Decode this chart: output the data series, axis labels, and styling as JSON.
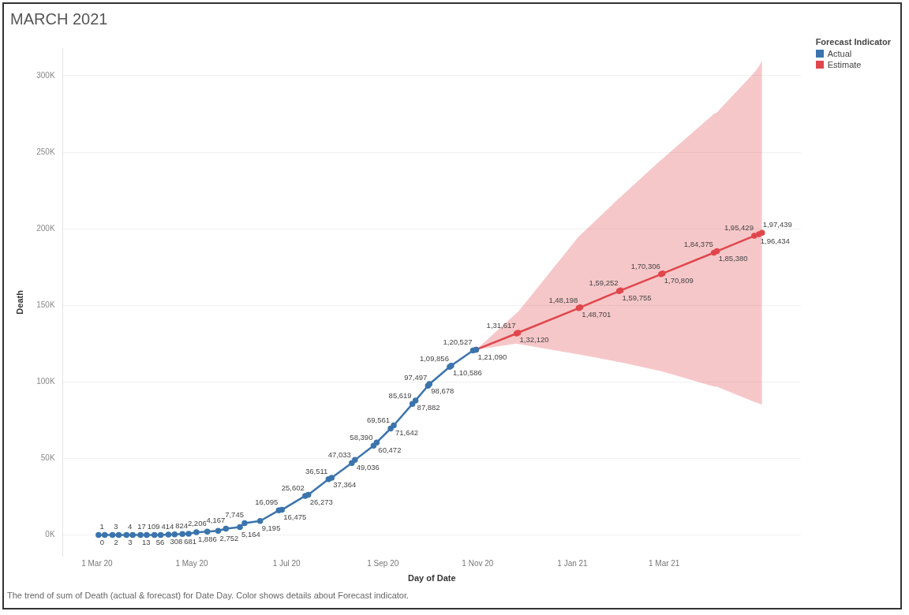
{
  "chart_data": {
    "type": "line",
    "title": "MARCH 2021",
    "xlabel": "Day of Date",
    "ylabel": "Death",
    "legend_title": "Forecast Indicator",
    "legend": "top right",
    "grid": "y",
    "marker": "circle",
    "line_style": "solid",
    "annotations": [
      "The trend of sum of Death (actual & forecast) for Date Day.  Color shows details about Forecast indicator."
    ],
    "xlim": [
      "2020-02-08",
      "2021-05-28"
    ],
    "xticks": [
      {
        "value": "2020-03-01",
        "label": "1 Mar 20"
      },
      {
        "value": "2020-05-01",
        "label": "1 May 20"
      },
      {
        "value": "2020-07-01",
        "label": "1 Jul 20"
      },
      {
        "value": "2020-09-01",
        "label": "1 Sep 20"
      },
      {
        "value": "2020-11-01",
        "label": "1 Nov 20"
      },
      {
        "value": "2021-01-01",
        "label": "1 Jan 21"
      },
      {
        "value": "2021-03-01",
        "label": "1 Mar 21"
      }
    ],
    "ylim": [
      -14000,
      318000
    ],
    "yticks": [
      {
        "value": 0,
        "label": "0K"
      },
      {
        "value": 50000,
        "label": "50K"
      },
      {
        "value": 100000,
        "label": "100K"
      },
      {
        "value": 150000,
        "label": "150K"
      },
      {
        "value": 200000,
        "label": "200K"
      },
      {
        "value": 250000,
        "label": "250K"
      },
      {
        "value": 300000,
        "label": "300K"
      }
    ],
    "series": [
      {
        "name": "Actual",
        "color": "#3b74ad",
        "x": [
          "2020-03-02",
          "2020-03-06",
          "2020-03-11",
          "2020-03-15",
          "2020-03-20",
          "2020-03-24",
          "2020-03-29",
          "2020-04-02",
          "2020-04-07",
          "2020-04-11",
          "2020-04-16",
          "2020-04-20",
          "2020-04-25",
          "2020-04-29",
          "2020-05-04",
          "2020-05-11",
          "2020-05-18",
          "2020-05-23",
          "2020-06-01",
          "2020-06-04",
          "2020-06-14",
          "2020-06-26",
          "2020-06-28",
          "2020-07-13",
          "2020-07-15",
          "2020-07-28",
          "2020-07-30",
          "2020-08-12",
          "2020-08-14",
          "2020-08-26",
          "2020-08-28",
          "2020-09-06",
          "2020-09-08",
          "2020-09-20",
          "2020-09-22",
          "2020-09-30",
          "2020-10-01",
          "2020-10-14",
          "2020-10-15",
          "2020-10-29",
          "2020-10-31"
        ],
        "values": [
          0,
          1,
          2,
          3,
          3,
          4,
          13,
          17,
          56,
          109,
          308,
          414,
          681,
          824,
          1886,
          2206,
          2752,
          4167,
          5164,
          7745,
          9195,
          16095,
          16475,
          25602,
          26273,
          36511,
          37364,
          47033,
          49036,
          58390,
          60472,
          69561,
          71642,
          85619,
          87882,
          97497,
          98678,
          109856,
          110586,
          120527,
          121090
        ],
        "value_labels": [
          "0",
          "1",
          "2",
          "3",
          "3",
          "4",
          "13",
          "17",
          "56",
          "109",
          "308",
          "414",
          "681",
          "824",
          "1,886",
          "2,206",
          "2,752",
          "4,167",
          "5,164",
          "7,745",
          "9,195",
          "16,095",
          "16,475",
          "25,602",
          "26,273",
          "36,511",
          "37,364",
          "47,033",
          "49,036",
          "58,390",
          "60,472",
          "69,561",
          "71,642",
          "85,619",
          "87,882",
          "97,497",
          "98,678",
          "1,09,856",
          "1,10,586",
          "1,20,527",
          "1,21,090"
        ]
      },
      {
        "name": "Estimate",
        "color": "#e0474c",
        "x": [
          "2020-10-31",
          "2020-11-26",
          "2020-11-27",
          "2021-01-05",
          "2021-01-06",
          "2021-01-31",
          "2021-02-01",
          "2021-02-27",
          "2021-02-28",
          "2021-04-02",
          "2021-04-04",
          "2021-04-28",
          "2021-05-01",
          "2021-05-03"
        ],
        "values": [
          121090,
          131617,
          132120,
          148198,
          148701,
          159252,
          159755,
          170306,
          170809,
          184375,
          185380,
          195429,
          196434,
          197439
        ],
        "value_labels": [
          null,
          "1,31,617",
          "1,32,120",
          "1,48,198",
          "1,48,701",
          "1,59,252",
          "1,59,755",
          "1,70,306",
          "1,70,809",
          "1,84,375",
          "1,85,380",
          "1,95,429",
          "1,96,434",
          "1,97,439"
        ],
        "lower": [
          121090,
          125000,
          124800,
          118000,
          117800,
          113000,
          112800,
          107000,
          106800,
          97000,
          96800,
          87000,
          86000,
          85000
        ],
        "upper": [
          121090,
          145000,
          145800,
          195000,
          195800,
          220000,
          220800,
          245000,
          245800,
          275000,
          276000,
          302000,
          306000,
          310000
        ]
      }
    ]
  }
}
